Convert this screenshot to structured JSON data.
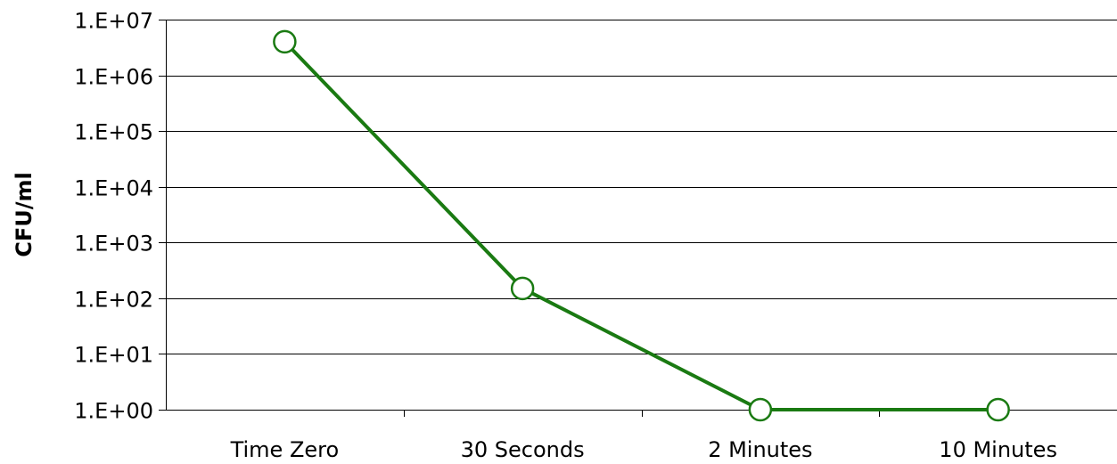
{
  "chart_data": {
    "type": "line",
    "title": "",
    "xlabel": "",
    "ylabel": "CFU/ml",
    "yscale": "log",
    "ylim": [
      1,
      10000000
    ],
    "y_ticks": [
      1,
      10,
      100,
      1000,
      10000,
      100000,
      1000000,
      10000000
    ],
    "y_tick_labels": [
      "1.E+00",
      "1.E+01",
      "1.E+02",
      "1.E+03",
      "1.E+04",
      "1.E+05",
      "1.E+06",
      "1.E+07"
    ],
    "categories": [
      "Time Zero",
      "30 Seconds",
      "2 Minutes",
      "10 Minutes"
    ],
    "series": [
      {
        "values": [
          4000000,
          150,
          1,
          1
        ],
        "color": "#1a7a12"
      }
    ],
    "grid": "horizontal",
    "legend": "none",
    "marker": "hollow-circle"
  }
}
